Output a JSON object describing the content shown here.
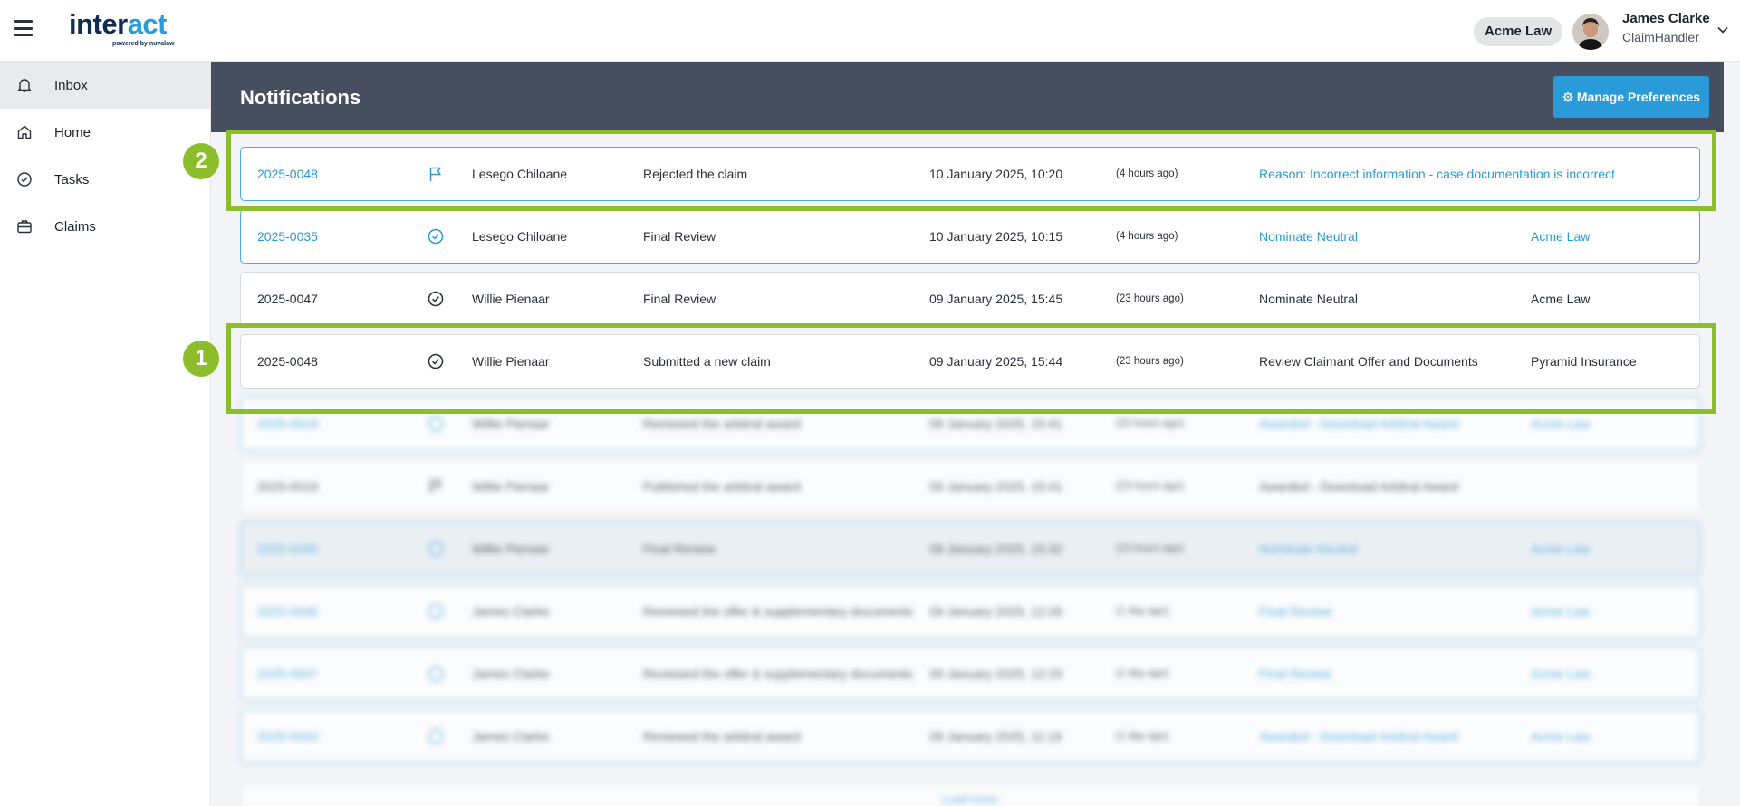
{
  "header": {
    "logo_main_1": "inter",
    "logo_main_2": "act",
    "logo_sub": "powered by nuvalaw",
    "org_badge": "Acme Law",
    "user_name": "James Clarke",
    "user_role": "ClaimHandler"
  },
  "sidebar": {
    "items": [
      {
        "label": "Inbox",
        "icon": "bell-icon",
        "active": true
      },
      {
        "label": "Home",
        "icon": "home-icon",
        "active": false
      },
      {
        "label": "Tasks",
        "icon": "check-circle-icon",
        "active": false
      },
      {
        "label": "Claims",
        "icon": "briefcase-icon",
        "active": false
      }
    ]
  },
  "main": {
    "title": "Notifications",
    "manage_button": "Manage Preferences",
    "rows": [
      {
        "claim": "2025-0048",
        "icon": "flag-icon",
        "user": "Lesego Chiloane",
        "action": "Rejected the claim",
        "date": "10 January 2025, 10:20",
        "relative": "(4 hours ago)",
        "detail": "Reason: Incorrect information - case documentation is incorrect",
        "org": ""
      },
      {
        "claim": "2025-0035",
        "icon": "check-circle-icon",
        "user": "Lesego Chiloane",
        "action": "Final Review",
        "date": "10 January 2025, 10:15",
        "relative": "(4 hours ago)",
        "detail": "Nominate Neutral",
        "org": "Acme Law"
      },
      {
        "claim": "2025-0047",
        "icon": "check-circle-icon",
        "user": "Willie Pienaar",
        "action": "Final Review",
        "date": "09 January 2025, 15:45",
        "relative": "(23 hours ago)",
        "detail": "Nominate Neutral",
        "org": "Acme Law"
      },
      {
        "claim": "2025-0048",
        "icon": "check-circle-icon",
        "user": "Willie Pienaar",
        "action": "Submitted a new claim",
        "date": "09 January 2025, 15:44",
        "relative": "(23 hours ago)",
        "detail": "Review Claimant Offer and Documents",
        "org": "Pyramid Insurance"
      },
      {
        "claim": "2025-0019",
        "icon": "check-circle-icon",
        "user": "Willie Pienaar",
        "action": "Reviewed the arbitral award",
        "date": "09 January 2025, 15:41",
        "relative": "(23 hours ago)",
        "detail": "Awarded - Download Arbitral Award",
        "org": "Acme Law"
      },
      {
        "claim": "2025-0019",
        "icon": "flag-icon",
        "user": "Willie Pienaar",
        "action": "Published the arbitral award",
        "date": "09 January 2025, 15:41",
        "relative": "(23 hours ago)",
        "detail": "Awarded - Download Arbitral Award",
        "org": ""
      },
      {
        "claim": "2025-0045",
        "icon": "check-circle-icon",
        "user": "Willie Pienaar",
        "action": "Final Review",
        "date": "09 January 2025, 15:32",
        "relative": "(23 hours ago)",
        "detail": "Nominate Neutral",
        "org": "Acme Law"
      },
      {
        "claim": "2025-0046",
        "icon": "check-circle-icon",
        "user": "James Clarke",
        "action": "Reviewed the offer & supplementary documents",
        "date": "09 January 2025, 12:26",
        "relative": "(1 day ago)",
        "detail": "Final Review",
        "org": "Acme Law"
      },
      {
        "claim": "2025-0047",
        "icon": "check-circle-icon",
        "user": "James Clarke",
        "action": "Reviewed the offer & supplementary documents",
        "date": "09 January 2025, 12:20",
        "relative": "(1 day ago)",
        "detail": "Final Review",
        "org": "Acme Law"
      },
      {
        "claim": "2025-0043",
        "icon": "check-circle-icon",
        "user": "James Clarke",
        "action": "Reviewed the arbitral award",
        "date": "09 January 2025, 11:19",
        "relative": "(1 day ago)",
        "detail": "Awarded - Download Arbitral Award",
        "org": "Acme Law"
      }
    ],
    "load_more": "Load more"
  },
  "annotations": {
    "marker_1": "1",
    "marker_2": "2",
    "highlight_color": "#8cbd2a"
  }
}
